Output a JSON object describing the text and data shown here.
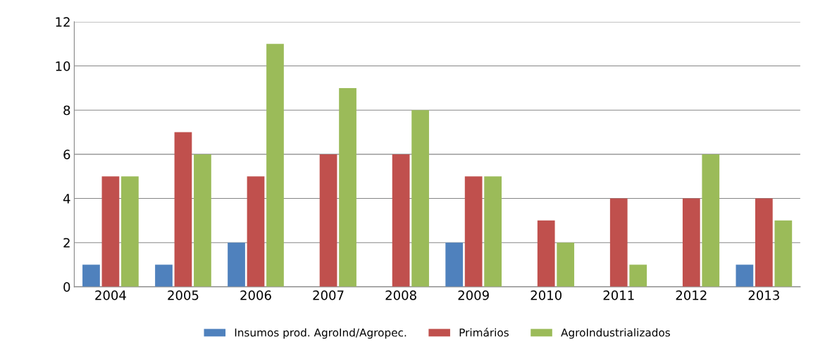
{
  "chart_data": {
    "type": "bar",
    "categories": [
      "2004",
      "2005",
      "2006",
      "2007",
      "2008",
      "2009",
      "2010",
      "2011",
      "2012",
      "2013"
    ],
    "series": [
      {
        "name": "Insumos prod. AgroInd/Agropec.",
        "color": "#4f81bd",
        "values": [
          1,
          1,
          2,
          0,
          0,
          2,
          0,
          0,
          0,
          1
        ]
      },
      {
        "name": "Primários",
        "color": "#c0504d",
        "values": [
          5,
          7,
          5,
          6,
          6,
          5,
          3,
          4,
          4,
          4
        ]
      },
      {
        "name": "AgroIndustrializados",
        "color": "#9bbb59",
        "values": [
          5,
          6,
          11,
          9,
          8,
          5,
          2,
          1,
          6,
          3
        ]
      }
    ],
    "ylim": [
      0,
      12
    ],
    "yticks": [
      0,
      2,
      4,
      6,
      8,
      10,
      12
    ],
    "grid": "y",
    "legend": "bottom"
  }
}
